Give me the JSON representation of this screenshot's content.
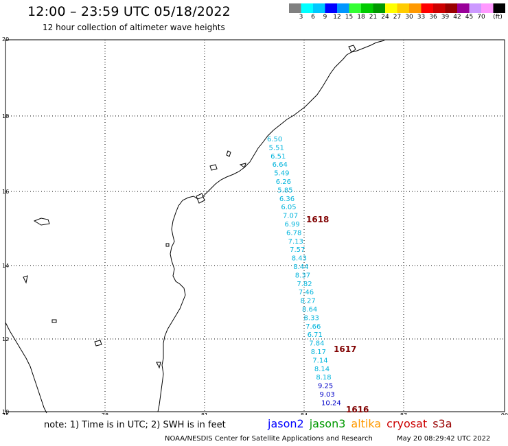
{
  "header": {
    "title": "12:00 – 23:59 UTC 05/18/2022",
    "subtitle": "12 hour collection of altimeter wave heights"
  },
  "colorbar": {
    "colors": [
      "#808080",
      "#00ffff",
      "#00c8ff",
      "#0000ff",
      "#0096ff",
      "#33ff33",
      "#00cc00",
      "#009900",
      "#ffff00",
      "#ffcc00",
      "#ff9900",
      "#ff0000",
      "#cc0000",
      "#990000",
      "#990099",
      "#cc99ff",
      "#ff99ff",
      "#000000"
    ],
    "labels": [
      "3",
      "6",
      "9",
      "12",
      "15",
      "18",
      "21",
      "24",
      "27",
      "30",
      "33",
      "36",
      "39",
      "42",
      "45",
      "70"
    ],
    "unit": "(ft)"
  },
  "axes": {
    "lat_labels": [
      "20",
      "18",
      "16",
      "14",
      "12",
      "10"
    ],
    "lon_labels": [
      "75",
      "78",
      "81",
      "84",
      "87",
      "90"
    ]
  },
  "passes": [
    {
      "label": "1618",
      "color": "#800000"
    },
    {
      "label": "1617",
      "color": "#800000"
    },
    {
      "label": "1616",
      "color": "#800000"
    }
  ],
  "swh": [
    {
      "v": "6.50",
      "c": "#00b4dc"
    },
    {
      "v": "5.51",
      "c": "#00b4dc"
    },
    {
      "v": "6.51",
      "c": "#00b4dc"
    },
    {
      "v": "6.64",
      "c": "#00b4dc"
    },
    {
      "v": "5.49",
      "c": "#00b4dc"
    },
    {
      "v": "6.26",
      "c": "#00b4dc"
    },
    {
      "v": "5.85",
      "c": "#00b4dc"
    },
    {
      "v": "6.36",
      "c": "#00b4dc"
    },
    {
      "v": "6.05",
      "c": "#00b4dc"
    },
    {
      "v": "7.07",
      "c": "#00b4dc"
    },
    {
      "v": "6.99",
      "c": "#00b4dc"
    },
    {
      "v": "6.78",
      "c": "#00b4dc"
    },
    {
      "v": "7.13",
      "c": "#00b4dc"
    },
    {
      "v": "7.57",
      "c": "#00b4dc"
    },
    {
      "v": "8.43",
      "c": "#00b4dc"
    },
    {
      "v": "8.44",
      "c": "#00b4dc"
    },
    {
      "v": "8.37",
      "c": "#00b4dc"
    },
    {
      "v": "7.82",
      "c": "#00b4dc"
    },
    {
      "v": "7.46",
      "c": "#00b4dc"
    },
    {
      "v": "8.27",
      "c": "#00b4dc"
    },
    {
      "v": "8.64",
      "c": "#00b4dc"
    },
    {
      "v": "8.33",
      "c": "#00b4dc"
    },
    {
      "v": "7.66",
      "c": "#00b4dc"
    },
    {
      "v": "6.71",
      "c": "#00b4dc"
    },
    {
      "v": "7.84",
      "c": "#00b4dc"
    },
    {
      "v": "8.17",
      "c": "#00b4dc"
    },
    {
      "v": "7.14",
      "c": "#00b4dc"
    },
    {
      "v": "8.14",
      "c": "#00b4dc"
    },
    {
      "v": "8.18",
      "c": "#00b4dc"
    },
    {
      "v": "9.25",
      "c": "#0000c8"
    },
    {
      "v": "9.03",
      "c": "#0000c8"
    },
    {
      "v": "10.24",
      "c": "#0000c8"
    }
  ],
  "note": "note:  1) Time is in UTC;  2) SWH is in feet",
  "satellites": [
    {
      "name": "jason2",
      "color": "#0000ff"
    },
    {
      "name": "jason3",
      "color": "#009900"
    },
    {
      "name": "altika",
      "color": "#ff9900"
    },
    {
      "name": "cryosat",
      "color": "#cc0000"
    },
    {
      "name": "s3a",
      "color": "#990000"
    }
  ],
  "footer": {
    "left": "NOAA/NESDIS Center for Satellite Applications and Research",
    "right": "May 20 08:29:42 UTC 2022"
  }
}
